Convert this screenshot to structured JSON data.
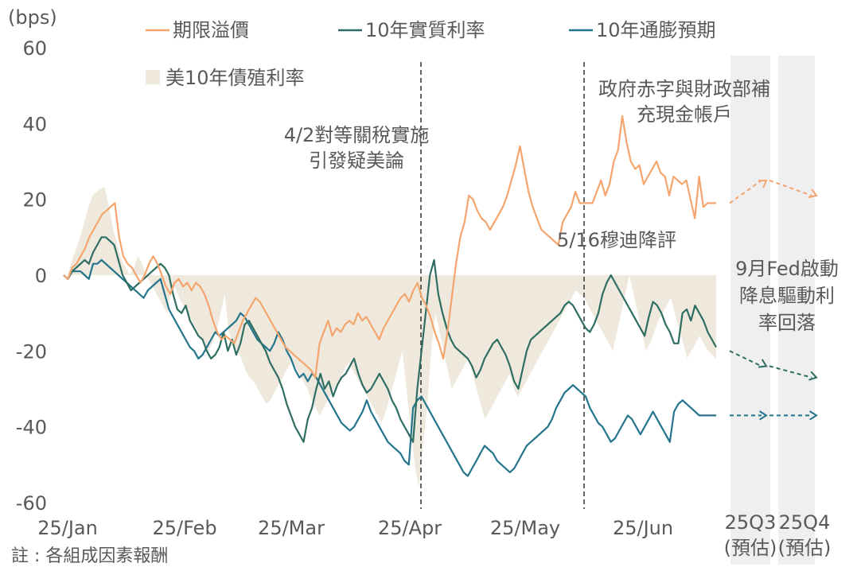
{
  "chart_data": {
    "type": "line",
    "ylabel": "(bps)",
    "ylim": [
      -60,
      60
    ],
    "yticks": [
      60,
      40,
      20,
      0,
      -20,
      -40,
      -60
    ],
    "xticks": [
      "25/Jan",
      "25/Feb",
      "25/Mar",
      "25/Apr",
      "25/May",
      "25/Jun"
    ],
    "forecast_labels": [
      {
        "line1": "25Q3",
        "line2": "(預估)"
      },
      {
        "line1": "25Q4",
        "line2": "(預估)"
      }
    ],
    "series": [
      {
        "name": "期限溢價",
        "kind": "line",
        "color": "#f4a56e",
        "values": [
          0,
          -1,
          2,
          3,
          5,
          7,
          10,
          12,
          14,
          16,
          17,
          18,
          19,
          10,
          5,
          3,
          2,
          0,
          -2,
          0,
          3,
          5,
          3,
          0,
          -3,
          -5,
          -2,
          -1,
          -3,
          -2,
          -4,
          -2,
          -3,
          -5,
          -8,
          -12,
          -15,
          -17,
          -16,
          -17,
          -18,
          -15,
          -12,
          -10,
          -8,
          -6,
          -7,
          -9,
          -11,
          -13,
          -15,
          -17,
          -19,
          -20,
          -21,
          -22,
          -23,
          -24,
          -25,
          -27,
          -18,
          -15,
          -12,
          -16,
          -14,
          -15,
          -13,
          -12,
          -13,
          -10,
          -12,
          -11,
          -13,
          -15,
          -17,
          -14,
          -12,
          -10,
          -8,
          -6,
          -5,
          -7,
          -4,
          -2,
          -6,
          -8,
          -11,
          -15,
          -18,
          -22,
          -15,
          -6,
          3,
          10,
          14,
          21,
          20,
          17,
          15,
          14,
          12,
          14,
          16,
          18,
          21,
          25,
          29,
          34,
          28,
          22,
          18,
          15,
          12,
          11,
          10,
          9,
          8,
          14,
          16,
          18,
          22,
          19,
          19,
          19,
          19,
          22,
          25,
          21,
          24,
          30,
          33,
          42,
          35,
          30,
          28,
          29,
          24,
          26,
          28,
          30,
          27,
          26,
          21,
          26,
          25,
          24,
          25,
          20,
          15,
          26,
          18,
          19,
          19,
          19
        ],
        "forecast": [
          19,
          25,
          21
        ]
      },
      {
        "name": "10年實質利率",
        "kind": "line",
        "color": "#2e6e62",
        "values": [
          0,
          -1,
          1,
          2,
          3,
          4,
          3,
          6,
          8,
          10,
          10,
          9,
          8,
          4,
          0,
          -2,
          -4,
          -3,
          -2,
          -1,
          0,
          1,
          2,
          3,
          2,
          0,
          -5,
          -9,
          -10,
          -8,
          -12,
          -14,
          -16,
          -17,
          -20,
          -22,
          -21,
          -19,
          -15,
          -20,
          -17,
          -21,
          -18,
          -13,
          -12,
          -14,
          -16,
          -18,
          -20,
          -23,
          -25,
          -27,
          -30,
          -34,
          -37,
          -40,
          -42,
          -44,
          -38,
          -35,
          -30,
          -26,
          -30,
          -28,
          -32,
          -29,
          -27,
          -26,
          -24,
          -22,
          -26,
          -29,
          -31,
          -30,
          -28,
          -26,
          -28,
          -30,
          -33,
          -35,
          -38,
          -40,
          -42,
          -44,
          -30,
          -20,
          -10,
          0,
          4,
          -5,
          -10,
          -14,
          -17,
          -19,
          -20,
          -21,
          -22,
          -24,
          -27,
          -25,
          -22,
          -20,
          -18,
          -17,
          -19,
          -21,
          -24,
          -28,
          -30,
          -25,
          -20,
          -17,
          -16,
          -15,
          -14,
          -13,
          -12,
          -11,
          -10,
          -8,
          -7,
          -8,
          -10,
          -12,
          -14,
          -15,
          -13,
          -10,
          -5,
          -2,
          0,
          -2,
          -4,
          -6,
          -8,
          -10,
          -12,
          -14,
          -16,
          -11,
          -7,
          -8,
          -10,
          -13,
          -15,
          -18,
          -18,
          -10,
          -9,
          -12,
          -8,
          -10,
          -12,
          -15,
          -17,
          -19
        ],
        "forecast": [
          -20,
          -24,
          -27
        ]
      },
      {
        "name": "10年通膨預期",
        "kind": "line",
        "color": "#23748c",
        "values": [
          0,
          -1,
          1,
          1,
          1,
          0,
          -1,
          3,
          3,
          4,
          3,
          2,
          1,
          0,
          -1,
          -2,
          -3,
          -4,
          -5,
          -6,
          -4,
          -3,
          -2,
          -1,
          -5,
          -9,
          -11,
          -13,
          -15,
          -17,
          -19,
          -20,
          -22,
          -21,
          -19,
          -17,
          -15,
          -16,
          -15,
          -14,
          -13,
          -12,
          -10,
          -11,
          -13,
          -15,
          -17,
          -18,
          -19,
          -20,
          -18,
          -15,
          -17,
          -20,
          -22,
          -25,
          -27,
          -26,
          -28,
          -26,
          -27,
          -29,
          -31,
          -33,
          -35,
          -37,
          -39,
          -40,
          -41,
          -40,
          -38,
          -36,
          -33,
          -36,
          -38,
          -40,
          -42,
          -44,
          -45,
          -46,
          -47,
          -49,
          -50,
          -35,
          -33,
          -32,
          -34,
          -36,
          -38,
          -40,
          -42,
          -44,
          -46,
          -48,
          -50,
          -52,
          -53,
          -51,
          -49,
          -47,
          -45,
          -46,
          -47,
          -49,
          -50,
          -51,
          -52,
          -51,
          -49,
          -47,
          -45,
          -44,
          -43,
          -42,
          -41,
          -40,
          -38,
          -35,
          -33,
          -31,
          -30,
          -29,
          -30,
          -31,
          -32,
          -35,
          -37,
          -39,
          -40,
          -42,
          -44,
          -43,
          -41,
          -39,
          -37,
          -38,
          -40,
          -42,
          -40,
          -38,
          -36,
          -38,
          -40,
          -42,
          -44,
          -36,
          -34,
          -33,
          -34,
          -35,
          -36,
          -37,
          -37,
          -37,
          -37,
          -37
        ],
        "forecast": [
          -37,
          -37,
          -37
        ]
      },
      {
        "name": "美10年債殖利率",
        "kind": "area",
        "color": "#efe9dd",
        "values": [
          0,
          0,
          4,
          7,
          10,
          14,
          18,
          21,
          22,
          23,
          23,
          18,
          12,
          8,
          4,
          2,
          0,
          2,
          5,
          3,
          0,
          -2,
          -4,
          -6,
          -8,
          -10,
          -5,
          -3,
          -6,
          -8,
          -10,
          -12,
          -14,
          -16,
          -18,
          -20,
          -18,
          -15,
          -10,
          -5,
          -15,
          -18,
          -20,
          -22,
          -25,
          -27,
          -28,
          -30,
          -32,
          -34,
          -33,
          -31,
          -29,
          -27,
          -25,
          -23,
          -24,
          -26,
          -28,
          -30,
          -33,
          -35,
          -37,
          -35,
          -33,
          -31,
          -29,
          -27,
          -25,
          -23,
          -25,
          -27,
          -29,
          -31,
          -33,
          -35,
          -37,
          -39,
          -36,
          -32,
          -28,
          -24,
          -20,
          -30,
          -40,
          -50,
          -56,
          -45,
          -35,
          -20,
          -10,
          -15,
          -20,
          -25,
          -30,
          -28,
          -26,
          -24,
          -22,
          -26,
          -30,
          -34,
          -38,
          -36,
          -34,
          -32,
          -30,
          -28,
          -26,
          -30,
          -32,
          -30,
          -28,
          -26,
          -24,
          -22,
          -20,
          -18,
          -16,
          -14,
          -12,
          -10,
          -8,
          -6,
          -4,
          -5,
          -6,
          -8,
          -10,
          -12,
          -14,
          -16,
          -18,
          -20,
          -15,
          -10,
          -5,
          0,
          -5,
          -10,
          -15,
          -20,
          -18,
          -15,
          -12,
          -10,
          -8,
          -6,
          -10,
          -14,
          -18,
          -22,
          -20,
          -18,
          -16,
          -18,
          -20,
          -21,
          -22
        ],
        "forecast": []
      }
    ],
    "annotations": [
      {
        "line1": "4/2對等關稅實施",
        "line2": "引發疑美論"
      },
      {
        "line1": "政府赤字與財政部補",
        "line2": "充現金帳戶"
      },
      {
        "line1": "5/16穆迪降評",
        "line2": ""
      },
      {
        "line1": "9月Fed啟動",
        "line2": "降息驅動利",
        "line3": "率回落"
      }
    ],
    "note": "註 : 各組成因素報酬"
  }
}
